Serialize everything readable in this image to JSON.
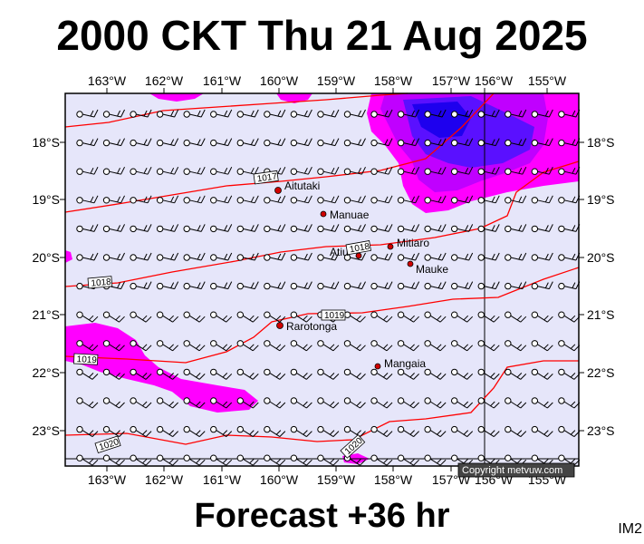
{
  "title": "2000 CKT Thu 21 Aug 2025",
  "footer": "Forecast +36 hr",
  "image_code": "IM2",
  "copyright": "Copyright metvuw.com",
  "lon_labels": [
    "163°W",
    "162°W",
    "161°W",
    "160°W",
    "159°W",
    "158°W",
    "157°W",
    "156°W",
    "155°W"
  ],
  "lat_labels": [
    "18°S",
    "19°S",
    "20°S",
    "21°S",
    "22°S",
    "23°S"
  ],
  "places": [
    {
      "name": "Aitutaki"
    },
    {
      "name": "Manuae"
    },
    {
      "name": "Mitiaro"
    },
    {
      "name": "Atiu"
    },
    {
      "name": "Mauke"
    },
    {
      "name": "Rarotonga"
    },
    {
      "name": "Mangaia"
    }
  ],
  "isobar_labels": [
    "1017",
    "1018",
    "1018",
    "1019",
    "1019",
    "1020",
    "1020"
  ],
  "colors": {
    "ocean": "#e6e6fa",
    "isobar": "#ff0000",
    "rain_light": "#ff00ff",
    "rain_medium": "#b000ff",
    "rain_heavy": "#2000ff",
    "place_dot": "#d00000"
  }
}
